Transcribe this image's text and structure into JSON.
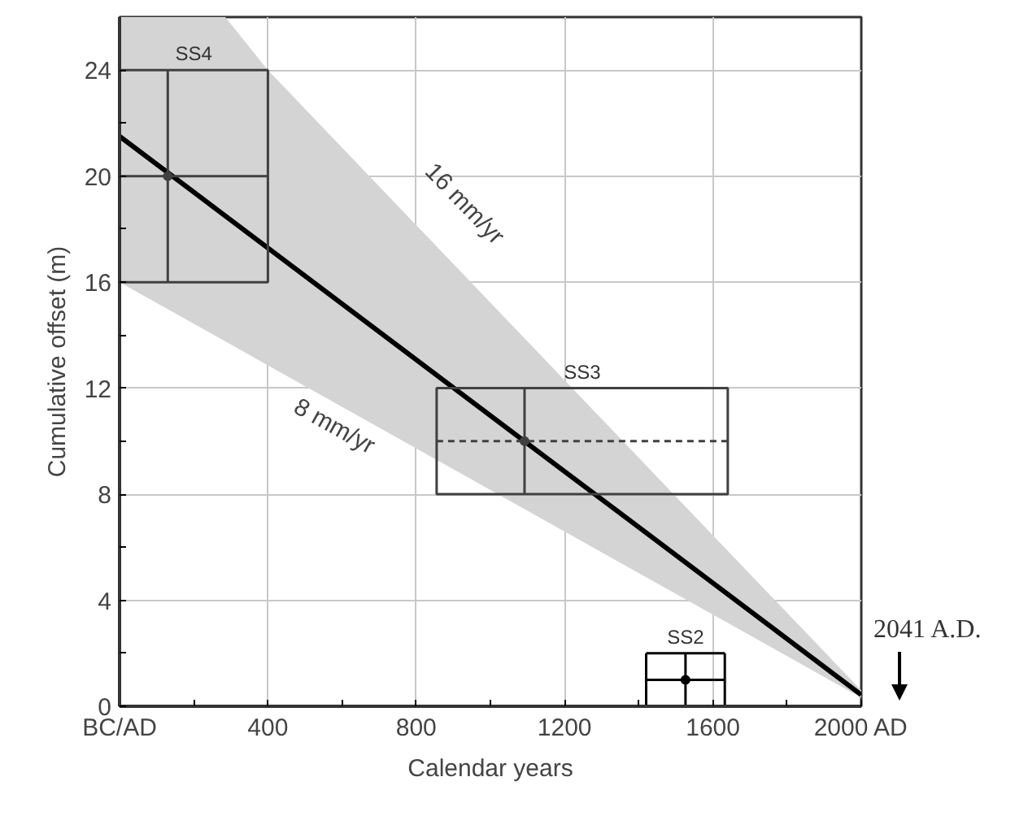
{
  "chart_data": {
    "type": "line",
    "xlabel": "Calendar years",
    "ylabel": "Cumulative offset (m)",
    "xlim": [
      0,
      2000
    ],
    "ylim": [
      0,
      26
    ],
    "xticks": [
      {
        "value": 0,
        "label": "BC/AD"
      },
      {
        "value": 200,
        "label": null
      },
      400,
      {
        "value": 600,
        "label": null
      },
      800,
      {
        "value": 1000,
        "label": null
      },
      1200,
      {
        "value": 1400,
        "label": null
      },
      1600,
      {
        "value": 1800,
        "label": null
      },
      {
        "value": 2000,
        "label": "2000 AD"
      }
    ],
    "yticks": [
      0,
      {
        "value": 2,
        "label": null
      },
      4,
      {
        "value": 6,
        "label": null
      },
      8,
      {
        "value": 10,
        "label": null
      },
      12,
      {
        "value": 14,
        "label": null
      },
      16,
      {
        "value": 18,
        "label": null
      },
      20,
      {
        "value": 22,
        "label": null
      },
      24
    ],
    "grid": true,
    "series": [
      {
        "color": "#000000",
        "x": [
          0,
          285,
          400,
          800,
          1200,
          1600,
          2000
        ],
        "values": [
          21.5,
          18.5,
          17.29,
          13.07,
          8.86,
          4.65,
          0.43
        ],
        "lower": [
          16,
          13.77,
          12.86,
          9.73,
          6.59,
          3.46,
          0.32
        ],
        "upper": [
          26,
          26,
          24,
          18.15,
          12.3,
          6.45,
          0.6
        ]
      },
      {
        "type": "scatter",
        "name": "SS4",
        "color": "#404040",
        "x": [
          130
        ],
        "values": [
          20
        ],
        "errors": [
          [
            16,
            24
          ]
        ],
        "xerrors": [
          [
            0,
            400
          ]
        ]
      },
      {
        "type": "scatter",
        "name": "SS3",
        "color": "#404040",
        "line_style": "dashed",
        "x": [
          1092
        ],
        "values": [
          10
        ],
        "errors": [
          [
            8,
            12
          ]
        ],
        "xerrors": [
          [
            855,
            1640
          ]
        ]
      },
      {
        "type": "scatter",
        "name": "SS2",
        "color": "#000000",
        "x": [
          1526
        ],
        "values": [
          1
        ],
        "errors": [
          [
            0,
            2
          ]
        ],
        "xerrors": [
          [
            1420,
            1632
          ]
        ]
      }
    ],
    "annotations": [
      "16 mm/yr",
      "8 mm/yr",
      "2041 A.D."
    ]
  }
}
